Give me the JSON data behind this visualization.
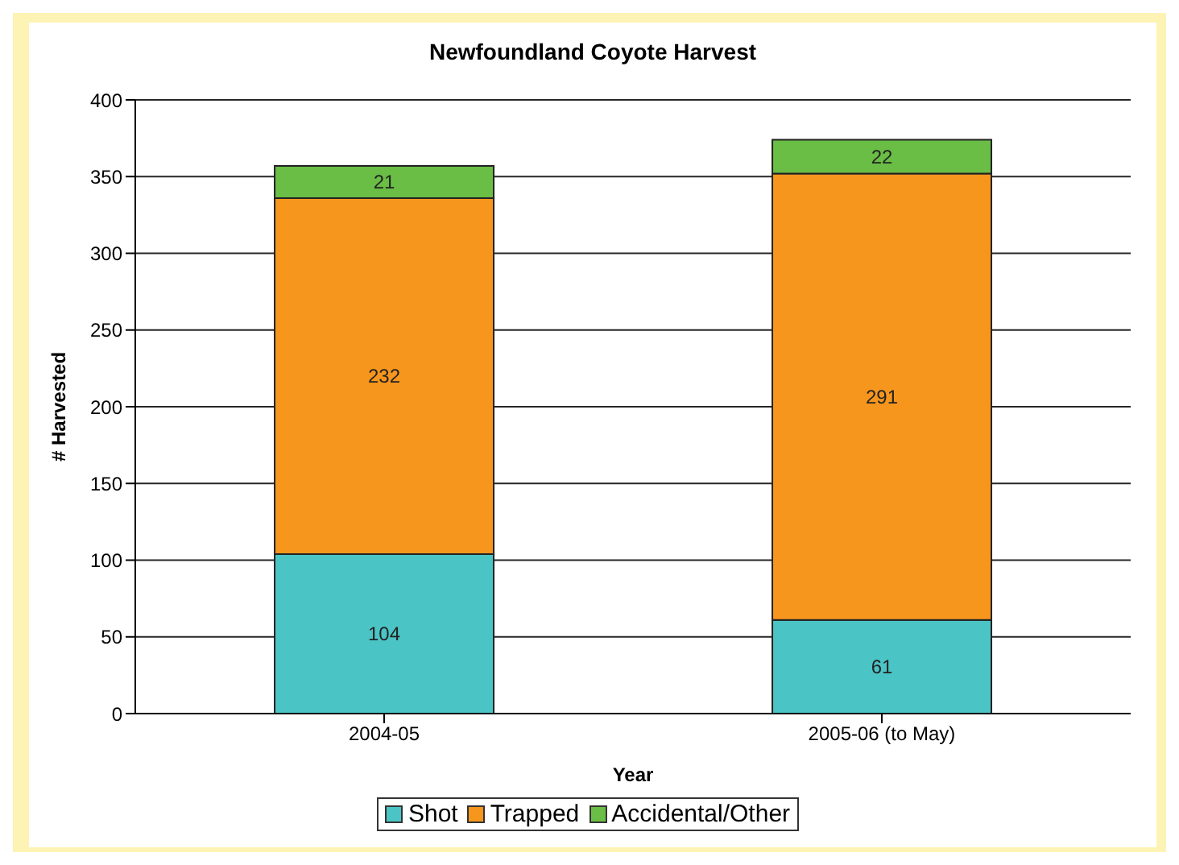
{
  "chart_data": {
    "type": "bar",
    "title": "Newfoundland Coyote Harvest",
    "xlabel": "Year",
    "ylabel": "# Harvested",
    "categories": [
      "2004-05",
      "2005-06 (to May)"
    ],
    "stacked": true,
    "series": [
      {
        "name": "Shot",
        "color": "#4bc4c6",
        "values": [
          104,
          61
        ]
      },
      {
        "name": "Trapped",
        "color": "#f7961d",
        "values": [
          232,
          291
        ]
      },
      {
        "name": "Accidental/Other",
        "color": "#6abd45",
        "values": [
          21,
          22
        ]
      }
    ],
    "ylim": [
      0,
      400
    ],
    "yticks": [
      0,
      50,
      100,
      150,
      200,
      250,
      300,
      350,
      400
    ],
    "grid": "y",
    "legend": "bottom",
    "data_labels": true
  }
}
